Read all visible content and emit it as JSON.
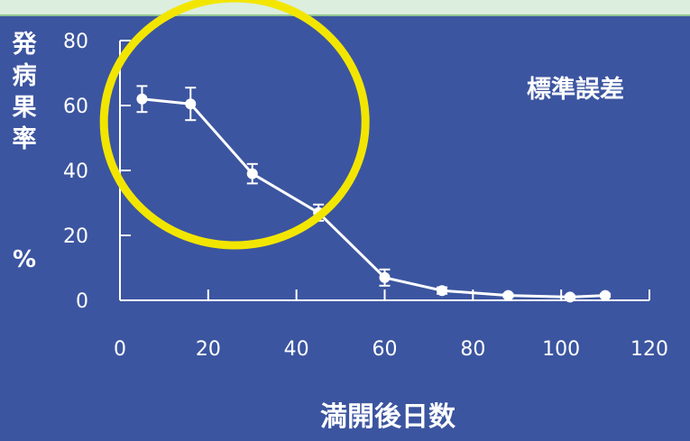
{
  "colors": {
    "background": "#3c55a0",
    "top_band": "#dceedd",
    "line": "#ffffff",
    "highlight_circle": "#f2e600"
  },
  "chart_data": {
    "type": "line",
    "title": "",
    "xlabel": "満開後日数",
    "ylabel": "発病果率",
    "ylabel_unit": "%",
    "legend_note": "標準誤差",
    "xlim": [
      0,
      120
    ],
    "ylim": [
      0,
      80
    ],
    "x_ticks": [
      0,
      20,
      40,
      60,
      80,
      100,
      120
    ],
    "y_ticks": [
      0,
      20,
      40,
      60,
      80
    ],
    "grid": false,
    "series": [
      {
        "x": [
          5,
          16,
          30,
          45,
          60,
          73,
          88,
          102,
          110
        ],
        "y": [
          62,
          60.5,
          39,
          27,
          7,
          3,
          1.5,
          1,
          1.5
        ],
        "error": [
          4,
          5,
          3,
          2.5,
          2.5,
          1,
          0.5,
          0.5,
          0.5
        ]
      }
    ],
    "highlight": {
      "type": "circle",
      "center_x": 26,
      "center_y": 55
    }
  }
}
